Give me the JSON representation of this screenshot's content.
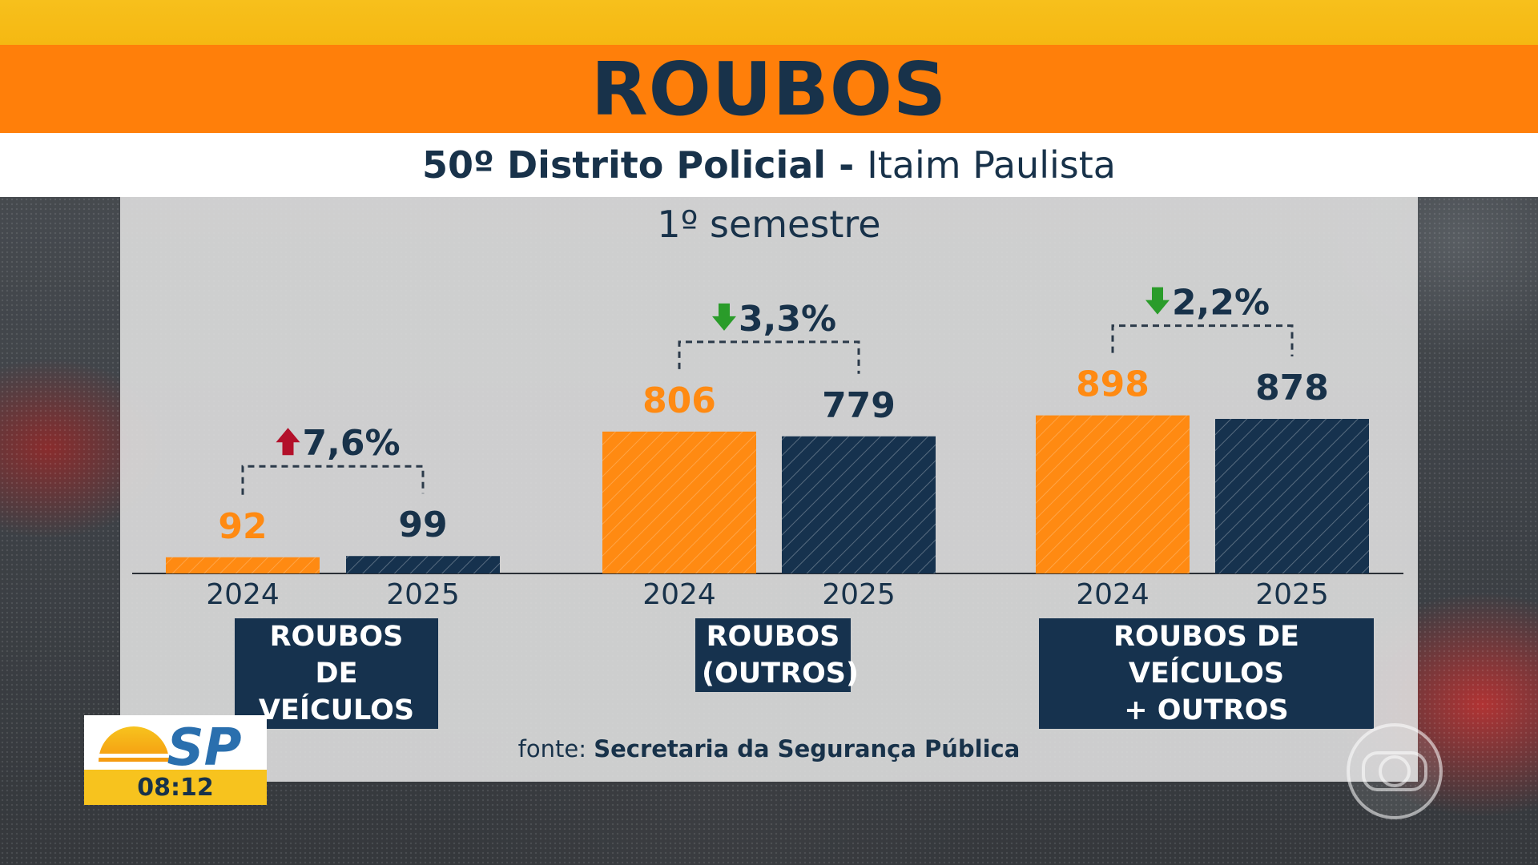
{
  "header": {
    "title": "ROUBOS",
    "subtitle_bold": "50º Distrito Policial",
    "subtitle_sep": " - ",
    "subtitle_rest": "Itaim Paulista",
    "period": "1º semestre"
  },
  "colors": {
    "bar_2024": "#ff8a12",
    "bar_2025": "#16324e",
    "title_bar": "#ff7f0a",
    "top_strip": "#f7c01c",
    "arrow_up": "#b3102a",
    "arrow_down": "#2a9c2a",
    "text_dark": "#18324a"
  },
  "chart_data": {
    "type": "bar",
    "title": "1º semestre",
    "series_names": [
      "2024",
      "2025"
    ],
    "groups": [
      {
        "label": "ROUBOS\nDE VEÍCULOS",
        "values": [
          92,
          99
        ],
        "change": "7,6%",
        "direction": "up"
      },
      {
        "label": "ROUBOS\n(OUTROS)",
        "values": [
          806,
          779
        ],
        "change": "3,3%",
        "direction": "down"
      },
      {
        "label": "ROUBOS DE VEÍCULOS\n+ OUTROS",
        "values": [
          898,
          878
        ],
        "change": "2,2%",
        "direction": "down"
      }
    ],
    "ylim": [
      0,
      1000
    ],
    "grid": false,
    "legend": "none"
  },
  "footer": {
    "source_prefix": "fonte: ",
    "source_name": "Secretaria da Segurança Pública"
  },
  "logo": {
    "program": "SP",
    "time": "08:12"
  }
}
